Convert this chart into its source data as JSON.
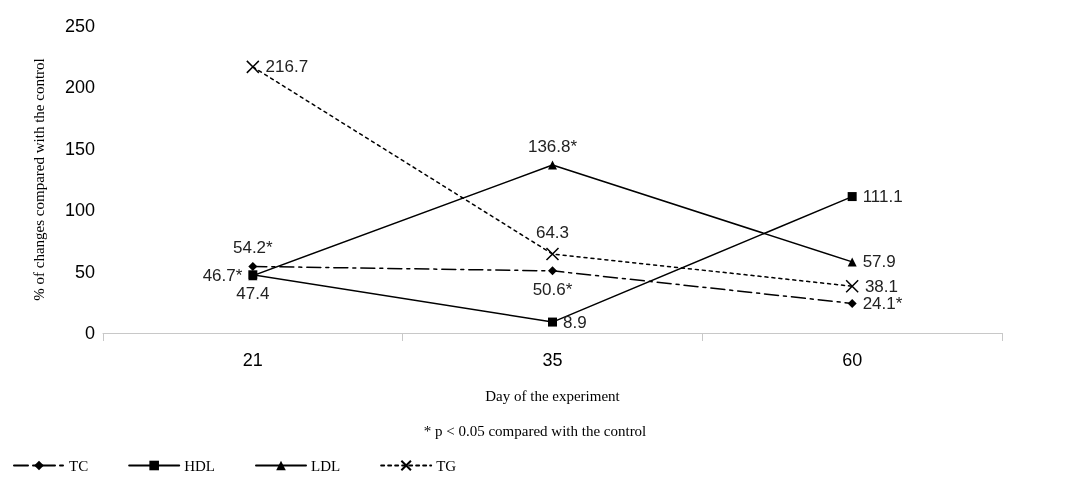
{
  "chart_data": {
    "type": "line",
    "xlabel": "Day of the experiment",
    "ylabel": "% of changes compared with the control",
    "annotations": [
      "* p < 0.05 compared with the control"
    ],
    "categories": [
      "21",
      "35",
      "60"
    ],
    "ylim": [
      0,
      250
    ],
    "yticks": [
      0,
      50,
      100,
      150,
      200,
      250
    ],
    "grid": false,
    "legend": "bottom left",
    "series": [
      {
        "name": "TC",
        "color": "#000000",
        "marker": "diamond",
        "line_style": "dashed",
        "values": [
          54.2,
          50.6,
          24.1
        ],
        "value_labels": [
          "54.2*",
          "50.6*",
          "24.1*"
        ]
      },
      {
        "name": "HDL",
        "color": "#000000",
        "marker": "square",
        "line_style": "solid",
        "values": [
          47.4,
          8.9,
          111.1
        ],
        "value_labels": [
          "47.4",
          "8.9",
          "111.1"
        ]
      },
      {
        "name": "LDL",
        "color": "#000000",
        "marker": "triangle",
        "line_style": "solid",
        "values": [
          46.7,
          136.8,
          57.9
        ],
        "value_labels": [
          "46.7*",
          "136.8*",
          "57.9"
        ]
      },
      {
        "name": "TG",
        "color": "#000000",
        "marker": "cross",
        "line_style": "dotted",
        "values": [
          216.7,
          64.3,
          38.1
        ],
        "value_labels": [
          "216.7",
          "64.3",
          "38.1"
        ]
      }
    ]
  }
}
